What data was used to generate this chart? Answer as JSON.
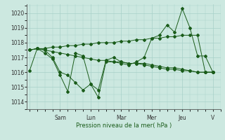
{
  "xlabel": "Pression niveau de la mer( hPa )",
  "background_color": "#cce8e0",
  "grid_color": "#a8d0c8",
  "line_color": "#1a5c1a",
  "ylim": [
    1013.5,
    1020.6
  ],
  "x_ticks_labels": [
    "",
    "Sam",
    "Lun",
    "Mar",
    "Mer",
    "Jeu",
    "V"
  ],
  "x_ticks_pos": [
    0,
    48,
    96,
    144,
    192,
    240,
    288
  ],
  "yticks": [
    1014,
    1015,
    1016,
    1017,
    1018,
    1019,
    1020
  ],
  "xlim": [
    -4,
    300
  ],
  "series": [
    {
      "x": [
        0,
        12,
        24,
        36,
        48,
        60,
        72,
        84,
        96,
        108,
        120,
        132,
        144,
        156,
        168,
        180,
        192,
        204,
        216,
        228,
        240,
        252,
        264,
        276,
        288
      ],
      "y": [
        1017.5,
        1017.6,
        1017.5,
        1017.4,
        1017.3,
        1017.2,
        1017.1,
        1017.0,
        1016.9,
        1016.8,
        1016.8,
        1016.7,
        1016.7,
        1016.6,
        1016.6,
        1016.5,
        1016.4,
        1016.3,
        1016.2,
        1016.2,
        1016.1,
        1016.1,
        1016.0,
        1016.0,
        1016.0
      ]
    },
    {
      "x": [
        0,
        12,
        24,
        36,
        48,
        60,
        72,
        84,
        96,
        108,
        120,
        132,
        144,
        156,
        168,
        180,
        192,
        204,
        216,
        228,
        240,
        252,
        264,
        276,
        288
      ],
      "y": [
        1017.5,
        1017.6,
        1017.6,
        1017.7,
        1017.7,
        1017.8,
        1017.8,
        1017.9,
        1017.9,
        1018.0,
        1018.0,
        1018.0,
        1018.1,
        1018.1,
        1018.2,
        1018.2,
        1018.3,
        1018.3,
        1018.4,
        1018.4,
        1018.5,
        1018.5,
        1018.5,
        1016.0,
        1016.0
      ]
    },
    {
      "x": [
        0,
        12,
        24,
        36,
        48,
        60,
        72,
        84,
        96,
        108,
        120,
        132,
        144,
        156,
        168,
        180,
        192,
        204,
        216,
        228,
        240,
        252,
        264,
        276,
        288
      ],
      "y": [
        1016.1,
        1017.6,
        1017.5,
        1017.0,
        1016.0,
        1015.8,
        1015.3,
        1014.8,
        1015.2,
        1014.3,
        1016.7,
        1016.7,
        1016.6,
        1016.5,
        1016.7,
        1017.0,
        1018.3,
        1018.5,
        1019.2,
        1018.7,
        1020.3,
        1019.0,
        1017.1,
        1017.1,
        1016.0
      ]
    },
    {
      "x": [
        0,
        12,
        24,
        36,
        48,
        60,
        72,
        84,
        96,
        108,
        120,
        132,
        144,
        156,
        168,
        180,
        192,
        204,
        216,
        228,
        240,
        252,
        264,
        276,
        288
      ],
      "y": [
        1017.5,
        1017.6,
        1017.3,
        1016.9,
        1015.8,
        1014.7,
        1017.3,
        1017.1,
        1015.2,
        1014.8,
        1016.8,
        1017.0,
        1016.7,
        1016.6,
        1016.6,
        1016.6,
        1016.5,
        1016.4,
        1016.3,
        1016.3,
        1016.2,
        1016.1,
        1016.0,
        1016.0,
        1016.0
      ]
    }
  ]
}
